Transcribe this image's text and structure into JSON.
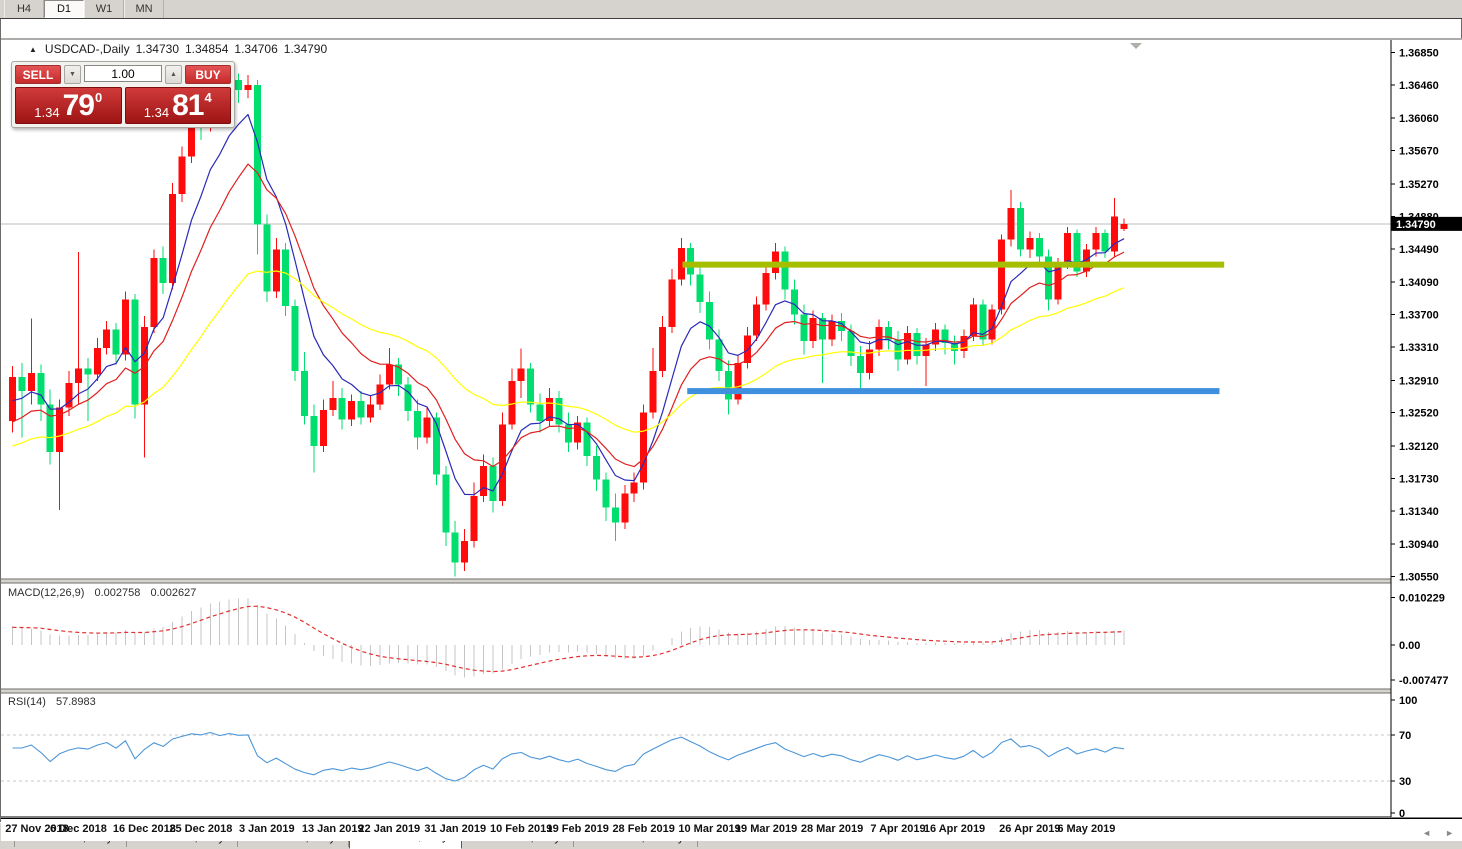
{
  "toolbar": {
    "timeframes": [
      "H4",
      "D1",
      "W1",
      "MN"
    ],
    "active": "D1"
  },
  "icons": {
    "collapse_panel": "▲",
    "spinner_down": "▼",
    "spinner_up": "▲",
    "chart_shift": "▼",
    "tab_scroll_left": "◄",
    "tab_scroll_right": "►"
  },
  "chart": {
    "title": {
      "symbol": "USDCAD-,Daily",
      "open": "1.34730",
      "high": "1.34854",
      "low": "1.34706",
      "close": "1.34790"
    },
    "trade_panel": {
      "sell_label": "SELL",
      "buy_label": "BUY",
      "volume": "1.00",
      "sell_price": {
        "prefix": "1.34",
        "big": "79",
        "sup": "0"
      },
      "buy_price": {
        "prefix": "1.34",
        "big": "81",
        "sup": "4"
      }
    }
  },
  "chart_data": {
    "type": "candlestick",
    "symbol": "USDCAD",
    "timeframe": "Daily",
    "bid_price": 1.3479,
    "bid_tag": "1.34790",
    "colors": {
      "bull": "#FF0B0B",
      "bear": "#00DE6E",
      "background": "#FFFFFF",
      "bid_line": "#BDBDBD",
      "axis_text": "#000000"
    },
    "price_axis": {
      "ticks": [
        1.3685,
        1.3646,
        1.3606,
        1.3567,
        1.3527,
        1.3488,
        1.3449,
        1.3409,
        1.337,
        1.3331,
        1.3291,
        1.3252,
        1.3212,
        1.3173,
        1.3134,
        1.3094,
        1.3055
      ],
      "labels": [
        "1.36850",
        "1.36460",
        "1.36060",
        "1.35670",
        "1.35270",
        "1.34880",
        "1.34490",
        "1.34090",
        "1.33700",
        "1.33310",
        "1.32910",
        "1.32520",
        "1.32120",
        "1.31730",
        "1.31340",
        "1.30940",
        "1.30550"
      ]
    },
    "date_axis": {
      "ticks": [
        {
          "label": "27 Nov 2018",
          "index": 0
        },
        {
          "label": "6 Dec 2018",
          "index": 7
        },
        {
          "label": "16 Dec 2018",
          "index": 14
        },
        {
          "label": "25 Dec 2018",
          "index": 20
        },
        {
          "label": "3 Jan 2019",
          "index": 27
        },
        {
          "label": "13 Jan 2019",
          "index": 34
        },
        {
          "label": "22 Jan 2019",
          "index": 40
        },
        {
          "label": "31 Jan 2019",
          "index": 47
        },
        {
          "label": "10 Feb 2019",
          "index": 54
        },
        {
          "label": "19 Feb 2019",
          "index": 60
        },
        {
          "label": "28 Feb 2019",
          "index": 67
        },
        {
          "label": "10 Mar 2019",
          "index": 74
        },
        {
          "label": "19 Mar 2019",
          "index": 80
        },
        {
          "label": "28 Mar 2019",
          "index": 87
        },
        {
          "label": "7 Apr 2019",
          "index": 94
        },
        {
          "label": "16 Apr 2019",
          "index": 100
        },
        {
          "label": "26 Apr 2019",
          "index": 108
        },
        {
          "label": "6 May 2019",
          "index": 114
        }
      ]
    },
    "candles": [
      [
        1.3242,
        1.3308,
        1.3228,
        1.3295
      ],
      [
        1.3295,
        1.3312,
        1.3222,
        1.3278
      ],
      [
        1.3278,
        1.3365,
        1.3262,
        1.33
      ],
      [
        1.33,
        1.331,
        1.3242,
        1.3262
      ],
      [
        1.3262,
        1.328,
        1.319,
        1.3205
      ],
      [
        1.3205,
        1.3268,
        1.3135,
        1.3258
      ],
      [
        1.3258,
        1.3302,
        1.3248,
        1.3288
      ],
      [
        1.3288,
        1.3445,
        1.3262,
        1.3305
      ],
      [
        1.3305,
        1.3318,
        1.3242,
        1.3298
      ],
      [
        1.3298,
        1.3342,
        1.329,
        1.333
      ],
      [
        1.333,
        1.3362,
        1.3322,
        1.3352
      ],
      [
        1.3352,
        1.336,
        1.331,
        1.3322
      ],
      [
        1.3322,
        1.3398,
        1.3315,
        1.3388
      ],
      [
        1.3388,
        1.3395,
        1.3245,
        1.3262
      ],
      [
        1.3262,
        1.3368,
        1.3198,
        1.3355
      ],
      [
        1.3355,
        1.3448,
        1.3348,
        1.3438
      ],
      [
        1.3438,
        1.3452,
        1.3395,
        1.3408
      ],
      [
        1.3408,
        1.3528,
        1.34,
        1.3515
      ],
      [
        1.3515,
        1.3572,
        1.3505,
        1.356
      ],
      [
        1.356,
        1.3618,
        1.3552,
        1.3606
      ],
      [
        1.3606,
        1.3615,
        1.358,
        1.3598
      ],
      [
        1.3598,
        1.3648,
        1.359,
        1.364
      ],
      [
        1.364,
        1.365,
        1.3605,
        1.3618
      ],
      [
        1.3618,
        1.3664,
        1.361,
        1.3652
      ],
      [
        1.3652,
        1.366,
        1.3624,
        1.364
      ],
      [
        1.364,
        1.3658,
        1.363,
        1.3646
      ],
      [
        1.3646,
        1.3652,
        1.3442,
        1.3478
      ],
      [
        1.3478,
        1.349,
        1.3385,
        1.3398
      ],
      [
        1.3398,
        1.3462,
        1.339,
        1.3448
      ],
      [
        1.3448,
        1.3456,
        1.3368,
        1.338
      ],
      [
        1.338,
        1.3388,
        1.329,
        1.3302
      ],
      [
        1.3302,
        1.3325,
        1.3238,
        1.3248
      ],
      [
        1.3248,
        1.3262,
        1.318,
        1.3212
      ],
      [
        1.3212,
        1.3268,
        1.3205,
        1.3255
      ],
      [
        1.3255,
        1.329,
        1.3248,
        1.327
      ],
      [
        1.327,
        1.3282,
        1.3232,
        1.3244
      ],
      [
        1.3244,
        1.3274,
        1.3236,
        1.3266
      ],
      [
        1.3266,
        1.3278,
        1.3238,
        1.3246
      ],
      [
        1.3246,
        1.3272,
        1.324,
        1.3262
      ],
      [
        1.3262,
        1.3298,
        1.3255,
        1.3286
      ],
      [
        1.3286,
        1.333,
        1.328,
        1.331
      ],
      [
        1.331,
        1.3318,
        1.3272,
        1.3286
      ],
      [
        1.3286,
        1.3295,
        1.3242,
        1.3254
      ],
      [
        1.3254,
        1.3268,
        1.3208,
        1.3222
      ],
      [
        1.3222,
        1.3258,
        1.3215,
        1.3246
      ],
      [
        1.3246,
        1.3252,
        1.3165,
        1.3178
      ],
      [
        1.3178,
        1.3188,
        1.3092,
        1.3108
      ],
      [
        1.3108,
        1.3122,
        1.3055,
        1.3072
      ],
      [
        1.3072,
        1.3112,
        1.3062,
        1.3098
      ],
      [
        1.3098,
        1.3168,
        1.309,
        1.3152
      ],
      [
        1.3152,
        1.3202,
        1.3145,
        1.3188
      ],
      [
        1.3188,
        1.3198,
        1.3132,
        1.3146
      ],
      [
        1.3146,
        1.3252,
        1.314,
        1.3238
      ],
      [
        1.3238,
        1.3305,
        1.3232,
        1.329
      ],
      [
        1.329,
        1.3329,
        1.327,
        1.3305
      ],
      [
        1.3305,
        1.3312,
        1.3252,
        1.3262
      ],
      [
        1.3262,
        1.3275,
        1.3228,
        1.3242
      ],
      [
        1.3242,
        1.3282,
        1.3235,
        1.327
      ],
      [
        1.327,
        1.3278,
        1.3228,
        1.3238
      ],
      [
        1.3238,
        1.3252,
        1.3205,
        1.3216
      ],
      [
        1.3216,
        1.3248,
        1.3208,
        1.324
      ],
      [
        1.324,
        1.3246,
        1.3188,
        1.32
      ],
      [
        1.32,
        1.3212,
        1.3158,
        1.3172
      ],
      [
        1.3172,
        1.318,
        1.3122,
        1.3138
      ],
      [
        1.3138,
        1.3155,
        1.3098,
        1.312
      ],
      [
        1.312,
        1.3165,
        1.3112,
        1.3155
      ],
      [
        1.3155,
        1.318,
        1.3145,
        1.3168
      ],
      [
        1.3168,
        1.3262,
        1.316,
        1.3252
      ],
      [
        1.3252,
        1.333,
        1.3245,
        1.3302
      ],
      [
        1.3302,
        1.3368,
        1.3295,
        1.3355
      ],
      [
        1.3355,
        1.3425,
        1.3348,
        1.3412
      ],
      [
        1.3412,
        1.3462,
        1.3405,
        1.345
      ],
      [
        1.345,
        1.3456,
        1.3405,
        1.3418
      ],
      [
        1.3418,
        1.3428,
        1.3372,
        1.3385
      ],
      [
        1.3385,
        1.3398,
        1.3328,
        1.334
      ],
      [
        1.334,
        1.3352,
        1.329,
        1.3302
      ],
      [
        1.3302,
        1.3315,
        1.325,
        1.3268
      ],
      [
        1.3268,
        1.3322,
        1.3262,
        1.3312
      ],
      [
        1.3312,
        1.3355,
        1.3305,
        1.3345
      ],
      [
        1.3345,
        1.3392,
        1.3338,
        1.3382
      ],
      [
        1.3382,
        1.343,
        1.3375,
        1.342
      ],
      [
        1.342,
        1.3456,
        1.3412,
        1.3446
      ],
      [
        1.3446,
        1.3452,
        1.3388,
        1.34
      ],
      [
        1.34,
        1.3412,
        1.3358,
        1.337
      ],
      [
        1.337,
        1.3382,
        1.3322,
        1.3338
      ],
      [
        1.3338,
        1.3375,
        1.333,
        1.3366
      ],
      [
        1.3366,
        1.3372,
        1.3288,
        1.334
      ],
      [
        1.334,
        1.337,
        1.3332,
        1.3362
      ],
      [
        1.3362,
        1.3372,
        1.3338,
        1.335
      ],
      [
        1.335,
        1.3358,
        1.3308,
        1.332
      ],
      [
        1.332,
        1.3332,
        1.3275,
        1.33
      ],
      [
        1.33,
        1.3338,
        1.3292,
        1.3328
      ],
      [
        1.3328,
        1.3364,
        1.332,
        1.3355
      ],
      [
        1.3355,
        1.3362,
        1.3328,
        1.334
      ],
      [
        1.334,
        1.335,
        1.3302,
        1.3316
      ],
      [
        1.3316,
        1.3356,
        1.331,
        1.3348
      ],
      [
        1.3348,
        1.3354,
        1.331,
        1.332
      ],
      [
        1.332,
        1.3342,
        1.3284,
        1.3334
      ],
      [
        1.3334,
        1.336,
        1.3326,
        1.3352
      ],
      [
        1.3352,
        1.3358,
        1.3322,
        1.3336
      ],
      [
        1.3336,
        1.3345,
        1.331,
        1.3326
      ],
      [
        1.3326,
        1.3352,
        1.3318,
        1.3344
      ],
      [
        1.3344,
        1.339,
        1.3338,
        1.3382
      ],
      [
        1.3382,
        1.3388,
        1.3332,
        1.334
      ],
      [
        1.334,
        1.3382,
        1.3334,
        1.3376
      ],
      [
        1.3376,
        1.3466,
        1.337,
        1.346
      ],
      [
        1.346,
        1.352,
        1.3452,
        1.3498
      ],
      [
        1.3498,
        1.3505,
        1.344,
        1.3448
      ],
      [
        1.3448,
        1.347,
        1.3438,
        1.3462
      ],
      [
        1.3462,
        1.3468,
        1.3428,
        1.344
      ],
      [
        1.344,
        1.3448,
        1.3375,
        1.3388
      ],
      [
        1.3388,
        1.3438,
        1.3382,
        1.3432
      ],
      [
        1.3432,
        1.3475,
        1.3425,
        1.3468
      ],
      [
        1.3468,
        1.3472,
        1.3415,
        1.3422
      ],
      [
        1.3422,
        1.3455,
        1.3415,
        1.3448
      ],
      [
        1.3448,
        1.3475,
        1.344,
        1.3468
      ],
      [
        1.3468,
        1.3472,
        1.3438,
        1.3446
      ],
      [
        1.3446,
        1.351,
        1.344,
        1.3488
      ],
      [
        1.3473,
        1.34854,
        1.34706,
        1.3479
      ]
    ],
    "moving_averages": [
      {
        "name": "ma-fast",
        "period": 7,
        "color": "#2A2AB8"
      },
      {
        "name": "ma-mid",
        "period": 13,
        "color": "#E01F1F"
      },
      {
        "name": "ma-slow",
        "period": 34,
        "color": "#FFFF00"
      }
    ],
    "overlays": [
      {
        "name": "resistance-line",
        "price": 1.343,
        "from_index": 71.5,
        "to_index": 129,
        "color": "#A6BE00",
        "width": 6
      },
      {
        "name": "support-line",
        "price": 1.3278,
        "from_index": 72,
        "to_index": 128.5,
        "color": "#3E8FDD",
        "width": 6
      }
    ],
    "indicators": {
      "macd": {
        "label": "MACD(12,26,9)",
        "value_main": "0.002758",
        "value_signal": "0.002627",
        "axis_ticks": [
          {
            "label": "0.010229",
            "value": 0.010229
          },
          {
            "label": "0.00",
            "value": 0
          },
          {
            "label": "-0.007477",
            "value": -0.007477
          }
        ],
        "histogram_color": "#C6C6C6",
        "signal_color": "#E23030"
      },
      "rsi": {
        "label": "RSI(14)",
        "value": "57.8983",
        "period": 14,
        "levels": [
          70,
          30
        ],
        "axis_ticks": [
          {
            "label": "100",
            "value": 100
          },
          {
            "label": "70",
            "value": 70
          },
          {
            "label": "30",
            "value": 30
          },
          {
            "label": "0",
            "value": 0
          }
        ],
        "color": "#4C96D8",
        "level_color": "#C8C8C8"
      }
    }
  },
  "tabs": {
    "items": [
      "EURUSD-,Daily",
      "AUDUSD-,Daily",
      "USDCHF-,Daily",
      "USDCAD-,Daily",
      "USDCNH-,Daily",
      "EURCHF-,Weekly"
    ],
    "active_index": 3
  }
}
